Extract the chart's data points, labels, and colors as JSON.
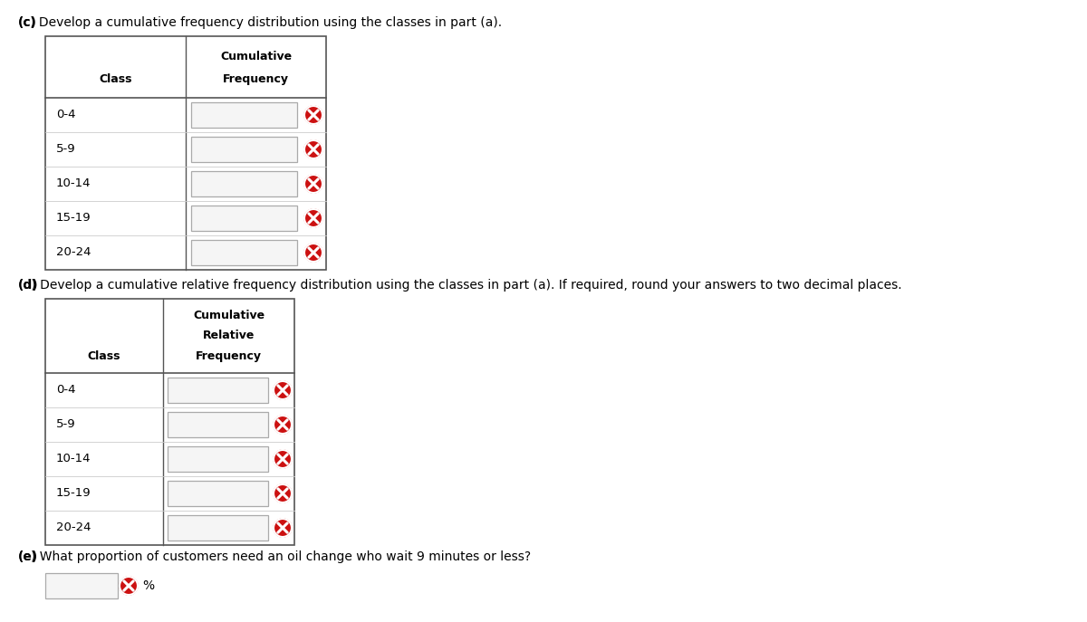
{
  "title_c": "Develop a cumulative frequency distribution using the classes in part (a).",
  "title_c_bold": "(c)",
  "title_d": "Develop a cumulative relative frequency distribution using the classes in part (a). If required, round your answers to two decimal places.",
  "title_d_bold": "(d)",
  "title_e": "What proportion of customers need an oil change who wait 9 minutes or less?",
  "title_e_bold": "(e)",
  "classes": [
    "0-4",
    "5-9",
    "10-14",
    "15-19",
    "20-24"
  ],
  "header_c_line1": "Cumulative",
  "header_c_line2": "Frequency",
  "header_d_line1": "Cumulative",
  "header_d_line2": "Relative",
  "header_d_line3": "Frequency",
  "col_class": "Class",
  "percent_label": "%",
  "bg_color": "#ffffff",
  "table_border_color": "#555555",
  "input_box_color": "#f5f5f5",
  "input_box_border": "#aaaaaa",
  "text_color": "#000000",
  "x_icon_circle": "#cc1111",
  "row_sep_color": "#cccccc",
  "figw": 12.0,
  "figh": 6.87,
  "dpi": 100
}
